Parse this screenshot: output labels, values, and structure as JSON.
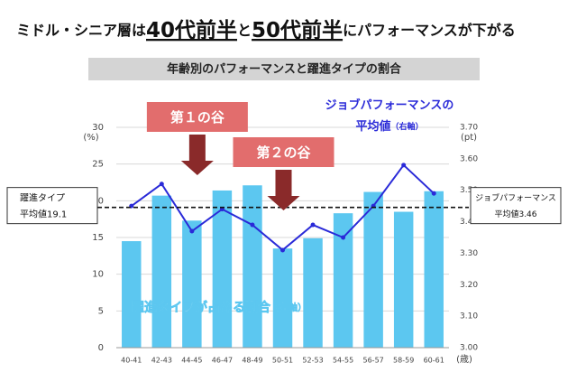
{
  "headline": [
    {
      "text": "ミドル・シニア層は",
      "emphasis": false
    },
    {
      "text": "40代前半",
      "emphasis": true
    },
    {
      "text": "と",
      "emphasis": false
    },
    {
      "text": "50代前半",
      "emphasis": true
    },
    {
      "text": "にパフォーマンスが下がる",
      "emphasis": false
    }
  ],
  "chart_data": {
    "type": "bar",
    "title": "年齢別のパフォーマンスと躍進タイプの割合",
    "y_unit": "(%)",
    "y2_unit": "(pt)",
    "x_unit": "(歳)",
    "categories": [
      "40-41",
      "42-43",
      "44-45",
      "46-47",
      "48-49",
      "50-51",
      "52-53",
      "54-55",
      "56-57",
      "58-59",
      "60-61"
    ],
    "series": [
      {
        "name": "躍進タイプが占める割合",
        "axis_note": "（左軸）",
        "type": "bar",
        "color": "#5cc7f0",
        "values": [
          14.5,
          20.7,
          17.3,
          21.4,
          22.1,
          13.5,
          14.9,
          18.3,
          21.2,
          18.5,
          21.3
        ]
      },
      {
        "name": "ジョブパフォーマンスの",
        "name2": "平均値",
        "axis_note": "（右軸）",
        "type": "line",
        "axis": "y2",
        "color": "#2a2ad8",
        "values": [
          3.45,
          3.52,
          3.37,
          3.44,
          3.39,
          3.31,
          3.39,
          3.35,
          3.45,
          3.58,
          3.49
        ]
      }
    ],
    "ylim": [
      0,
      30
    ],
    "yticks": [
      0,
      5,
      10,
      15,
      20,
      25,
      30
    ],
    "y2lim": [
      3.0,
      3.7
    ],
    "y2ticks": [
      {
        "value": 3.0,
        "label": "3.00"
      },
      {
        "value": 3.1,
        "label": "3.10"
      },
      {
        "value": 3.2,
        "label": "3.20"
      },
      {
        "value": 3.3,
        "label": "3.30"
      },
      {
        "value": 3.4,
        "label": "3.40"
      },
      {
        "value": 3.5,
        "label": "3.50"
      },
      {
        "value": 3.6,
        "label": "3.60"
      },
      {
        "value": 3.7,
        "label": "3.70"
      }
    ],
    "grid": true,
    "reference_line": {
      "value": 19.1,
      "y2_value": 3.46,
      "left_label": [
        "躍進タイプ",
        "平均値19.1"
      ],
      "right_label": [
        "ジョブパフォーマンス",
        "平均値3.46"
      ]
    },
    "callouts": [
      {
        "text": "第１の谷",
        "category": 2
      },
      {
        "text": "第２の谷",
        "category": 5
      }
    ]
  }
}
